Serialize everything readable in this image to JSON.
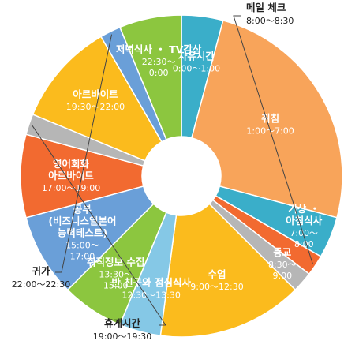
{
  "chart_data": {
    "type": "pie",
    "subtype": "donut",
    "unit": "hours",
    "slices": [
      {
        "label": "자유시간",
        "time": "0:00〜1:00",
        "value": 1,
        "color": "#3aaec9",
        "label_style": "inside"
      },
      {
        "label": "취침",
        "time": "1:00〜7:00",
        "value": 6,
        "color": "#f8a45a",
        "label_style": "inside"
      },
      {
        "label": "기상 ・ 아침식사",
        "time": "7:00〜 8:00",
        "value": 1,
        "color": "#3aaec9",
        "label_style": "inside"
      },
      {
        "label": "메일 체크",
        "time": "8:00〜8:30",
        "value": 0.5,
        "color": "#f26a30",
        "label_style": "outside"
      },
      {
        "label": "등교",
        "time": "8:30〜 9:00",
        "value": 0.5,
        "color": "#b6b6b6",
        "label_style": "inside"
      },
      {
        "label": "수업",
        "time": "9:00〜12:30",
        "value": 3.5,
        "color": "#fbbb1d",
        "label_style": "inside"
      },
      {
        "label": "반 친구와 점심식사",
        "time": "12:30〜13:30",
        "value": 1,
        "color": "#85c8e6",
        "label_style": "inside"
      },
      {
        "label": "취직정보 수집",
        "time": "13:30〜 15:00",
        "value": 1.5,
        "color": "#8cc63f",
        "label_style": "inside"
      },
      {
        "label": "공부 (비즈니스일본어 능력테스트)",
        "time": "15:00〜 17:00",
        "value": 2,
        "color": "#6a9fd8",
        "label_style": "inside"
      },
      {
        "label": "영어회화 아르바이트",
        "time": "17:00〜19:00",
        "value": 2,
        "color": "#f26a30",
        "label_style": "inside"
      },
      {
        "label": "휴게시간",
        "time": "19:00〜19:30",
        "value": 0.5,
        "color": "#b6b6b6",
        "label_style": "outside"
      },
      {
        "label": "아르바이트",
        "time": "19:30〜22:00",
        "value": 2.5,
        "color": "#fbbb1d",
        "label_style": "inside"
      },
      {
        "label": "귀가",
        "time": "22:00〜22:30",
        "value": 0.5,
        "color": "#6a9fd8",
        "label_style": "outside"
      },
      {
        "label": "저녁식사 ・ TV감상",
        "time": "22:30〜 0:00",
        "value": 1.5,
        "color": "#8cc63f",
        "label_style": "inside"
      }
    ]
  }
}
